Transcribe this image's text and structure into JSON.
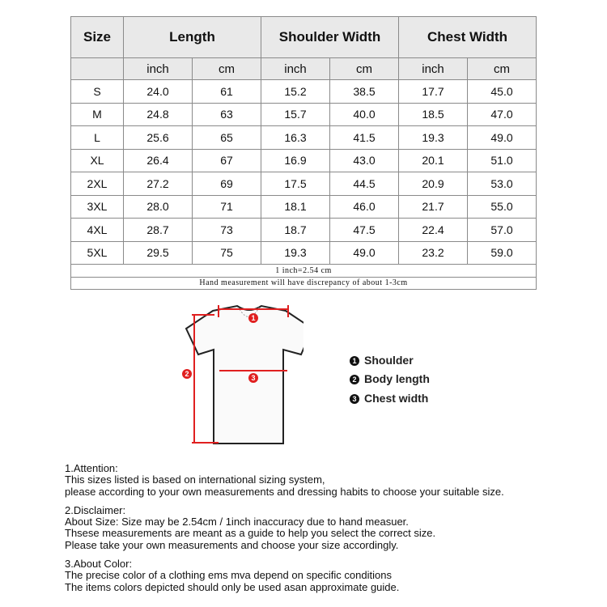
{
  "table": {
    "headers": [
      "Size",
      "Length",
      "Shoulder Width",
      "Chest Width"
    ],
    "units": [
      "inch",
      "cm",
      "inch",
      "cm",
      "inch",
      "cm"
    ],
    "rows": [
      [
        "S",
        "24.0",
        "61",
        "15.2",
        "38.5",
        "17.7",
        "45.0"
      ],
      [
        "M",
        "24.8",
        "63",
        "15.7",
        "40.0",
        "18.5",
        "47.0"
      ],
      [
        "L",
        "25.6",
        "65",
        "16.3",
        "41.5",
        "19.3",
        "49.0"
      ],
      [
        "XL",
        "26.4",
        "67",
        "16.9",
        "43.0",
        "20.1",
        "51.0"
      ],
      [
        "2XL",
        "27.2",
        "69",
        "17.5",
        "44.5",
        "20.9",
        "53.0"
      ],
      [
        "3XL",
        "28.0",
        "71",
        "18.1",
        "46.0",
        "21.7",
        "55.0"
      ],
      [
        "4XL",
        "28.7",
        "73",
        "18.7",
        "47.5",
        "22.4",
        "57.0"
      ],
      [
        "5XL",
        "29.5",
        "75",
        "19.3",
        "49.0",
        "23.2",
        "59.0"
      ]
    ],
    "notes": [
      "1 inch=2.54 cm",
      "Hand measurement will have discrepancy of about 1-3cm"
    ]
  },
  "diagram": {
    "markers": [
      "1",
      "2",
      "3"
    ],
    "legend": [
      {
        "num": "1",
        "label": "Shoulder"
      },
      {
        "num": "2",
        "label": "Body length"
      },
      {
        "num": "3",
        "label": "Chest width"
      }
    ],
    "accent_color": "#e02020"
  },
  "notes": [
    {
      "title": "1.Attention:",
      "lines": [
        "This sizes listed is based on international sizing system,",
        "please according to your own measurements and dressing habits to choose your suitable size."
      ]
    },
    {
      "title": "2.Disclaimer:",
      "lines": [
        "About Size: Size may be 2.54cm / 1inch inaccuracy due to hand measuer.",
        "Thsese measurements are meant as a guide to help you select the correct size.",
        "Please take your own measurements and choose your size accordingly."
      ]
    },
    {
      "title": "3.About Color:",
      "lines": [
        "The precise color of a clothing ems mva depend on specific conditions",
        "The items colors depicted should only be used asan approximate guide."
      ]
    }
  ]
}
